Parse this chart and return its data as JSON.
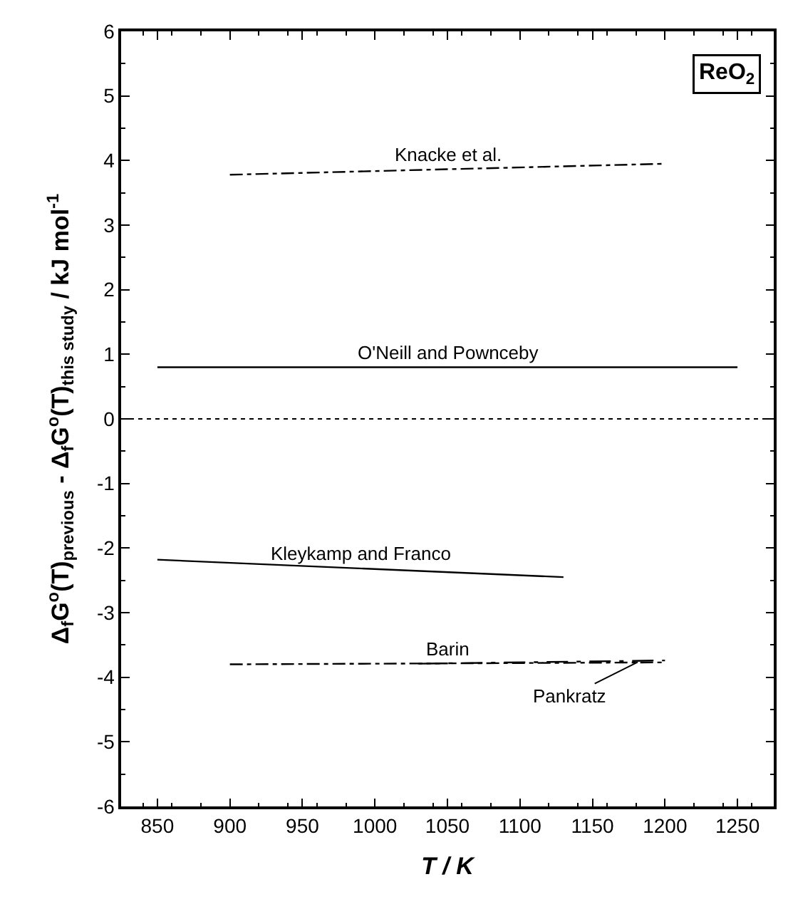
{
  "chart_data": {
    "type": "line",
    "xlabel": "T / K",
    "ylabel": "Δ$_{f}$G$^{o}$(T)$_{previous}$ - Δ$_{f}$G$^{o}$(T)$_{this study}$ / kJ mol$^{-1}$",
    "xlim": [
      825,
      1275
    ],
    "xticks": [
      850,
      900,
      950,
      1000,
      1050,
      1100,
      1150,
      1200,
      1250
    ],
    "ylim": [
      -6,
      6
    ],
    "yticks": [
      -6,
      -5,
      -4,
      -3,
      -2,
      -1,
      0,
      1,
      2,
      3,
      4,
      5,
      6
    ],
    "marker": "none",
    "series": [
      {
        "name": "Knacke et al.",
        "color": "#000000",
        "x": [
          900,
          1200
        ],
        "values": [
          3.78,
          3.95
        ],
        "line_style": "dashed"
      },
      {
        "name": "O'Neill and Pownceby",
        "color": "#000000",
        "x": [
          850,
          1250
        ],
        "values": [
          0.8,
          0.8
        ],
        "line_style": "solid"
      },
      {
        "name": "Kleykamp and Franco",
        "color": "#000000",
        "x": [
          850,
          1130
        ],
        "values": [
          -2.18,
          -2.45
        ],
        "line_style": "solid"
      },
      {
        "name": "Barin",
        "color": "#000000",
        "x": [
          900,
          1200
        ],
        "values": [
          -3.8,
          -3.77
        ],
        "line_style": "dashed"
      },
      {
        "name": "Pankratz",
        "color": "#000000",
        "x": [
          1030,
          1200
        ],
        "values": [
          -3.79,
          -3.74
        ],
        "line_style": "dotted"
      }
    ],
    "ref_lines": [
      {
        "axis": "y",
        "value": 0,
        "line_style": "dotted",
        "color": "#000000"
      }
    ],
    "annotations": [
      "ReO$_{2}$"
    ]
  }
}
